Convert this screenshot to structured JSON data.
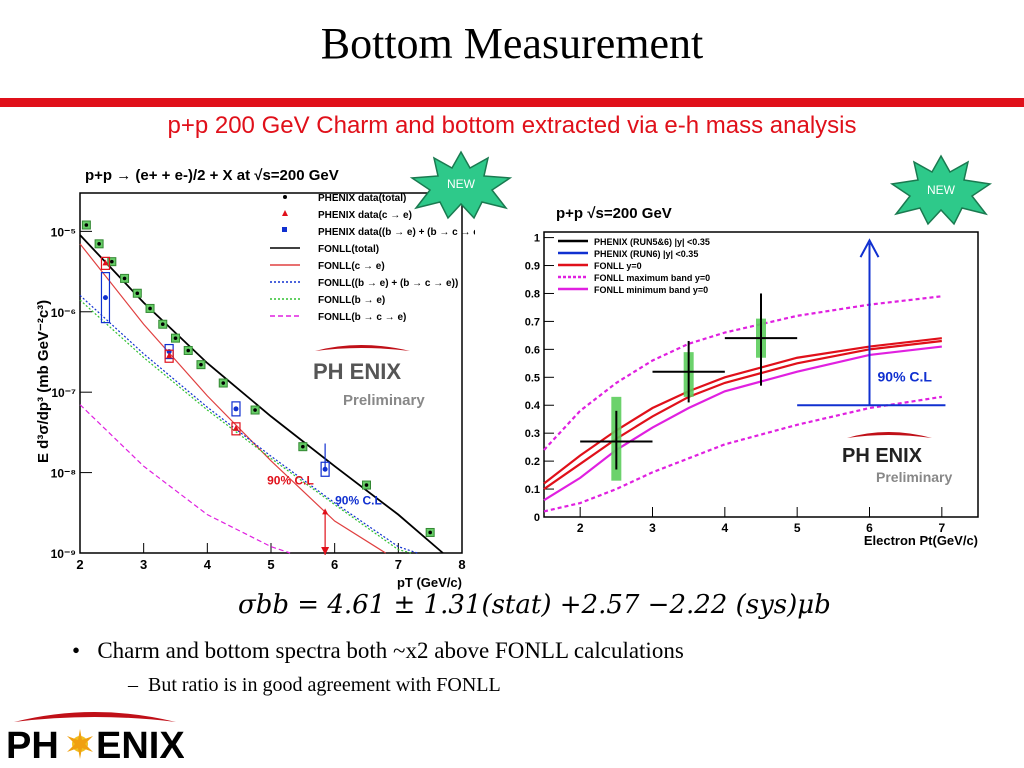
{
  "slide": {
    "title": "Bottom Measurement",
    "subtitle": "p+p 200 GeV   Charm and bottom extracted via e-h mass analysis",
    "bullet1": "Charm and bottom spectra both ~x2 above FONLL calculations",
    "bullet2": "But ratio is in good agreement with FONLL",
    "formula": "σbb = 4.61 ± 1.31(stat) +2.57 −2.22 (sys)μb",
    "new_badge": "NEW",
    "colors": {
      "accent_red": "#e0101a",
      "badge_green": "#2ec98a"
    }
  },
  "chart_data": [
    {
      "type": "scatter",
      "title": "p+p → (e+ + e-)/2 + X at √s=200 GeV",
      "xlabel": "pT (GeV/c)",
      "ylabel": "E d³σ/dp³ (mb GeV⁻²c³)",
      "xlim": [
        2,
        8
      ],
      "ylim": [
        1e-09,
        3e-05
      ],
      "yscale": "log",
      "x_ticks": [
        "2",
        "3",
        "4",
        "5",
        "6",
        "7",
        "8"
      ],
      "y_ticks": [
        "10⁻⁹",
        "10⁻⁸",
        "10⁻⁷",
        "10⁻⁶",
        "10⁻⁵"
      ],
      "legend_position": "top-right",
      "legend": [
        "PHENIX data(total)",
        "PHENIX data(c → e)",
        "PHENIX data((b → e) + (b → c → e))",
        "FONLL(total)",
        "FONLL(c → e)",
        "FONLL((b → e) + (b → c → e))",
        "FONLL(b → e)",
        "FONLL(b → c → e)"
      ],
      "series": [
        {
          "name": "PHENIX data(total)",
          "color": "#1a1a1a",
          "x": [
            2.1,
            2.3,
            2.5,
            2.7,
            2.9,
            3.1,
            3.3,
            3.5,
            3.7,
            3.9,
            4.25,
            4.75,
            5.5,
            6.5,
            7.5
          ],
          "y": [
            1.2e-05,
            7e-06,
            4.2e-06,
            2.6e-06,
            1.7e-06,
            1.1e-06,
            7e-07,
            4.7e-07,
            3.3e-07,
            2.2e-07,
            1.3e-07,
            6e-08,
            2.1e-08,
            7e-09,
            1.8e-09
          ]
        },
        {
          "name": "PHENIX data(c → e)",
          "color": "#e0101a",
          "x": [
            2.4,
            3.4,
            4.45,
            5.85
          ],
          "y": [
            4e-06,
            2.8e-07,
            3.5e-08,
            3.2e-09
          ]
        },
        {
          "name": "PHENIX data((b → e) + (b → c → e))",
          "color": "#1030d0",
          "x": [
            2.4,
            3.4,
            4.45,
            5.85
          ],
          "y": [
            1.5e-06,
            3.2e-07,
            6.2e-08,
            1.1e-08
          ]
        },
        {
          "name": "FONLL(total)",
          "color": "#000000",
          "x": [
            2,
            3,
            4,
            5,
            6,
            7,
            7.7
          ],
          "y": [
            9e-06,
            1.3e-06,
            2.3e-07,
            5e-08,
            1.2e-08,
            3e-09,
            1e-09
          ]
        },
        {
          "name": "FONLL(c → e)",
          "color": "#e04040",
          "x": [
            2,
            3,
            4,
            5,
            6,
            6.8
          ],
          "y": [
            7e-06,
            7e-07,
            9e-08,
            1.4e-08,
            2.5e-09,
            1e-09
          ]
        },
        {
          "name": "FONLL((b → e) + (b → c → e))",
          "color": "#1030d0",
          "x": [
            2,
            3,
            4,
            5,
            6,
            7,
            7.3
          ],
          "y": [
            1.6e-06,
            3e-07,
            6.5e-08,
            1.6e-08,
            4.2e-09,
            1.2e-09,
            1e-09
          ]
        },
        {
          "name": "FONLL(b → e)",
          "color": "#30c030",
          "x": [
            2,
            3,
            4,
            5,
            6,
            7,
            7.2
          ],
          "y": [
            1.4e-06,
            2.7e-07,
            6e-08,
            1.5e-08,
            4e-09,
            1.1e-09,
            1e-09
          ]
        },
        {
          "name": "FONLL(b → c → e)",
          "color": "#e020e0",
          "x": [
            2,
            3,
            4,
            5,
            5.3
          ],
          "y": [
            7e-08,
            1.2e-08,
            3e-09,
            1.2e-09,
            1e-09
          ]
        }
      ],
      "annotations": [
        "90% C.L",
        "90% C.L"
      ],
      "logo_text": "PH ENIX",
      "preliminary": "Preliminary"
    },
    {
      "type": "line",
      "title": "p+p    √s=200 GeV",
      "xlabel": "Electron Pt(GeV/c)",
      "xlim": [
        1.5,
        7.5
      ],
      "ylim": [
        0,
        1.02
      ],
      "x_ticks": [
        "2",
        "3",
        "4",
        "5",
        "6",
        "7"
      ],
      "y_ticks": [
        "0",
        "0.1",
        "0.2",
        "0.3",
        "0.4",
        "0.5",
        "0.6",
        "0.7",
        "0.8",
        "0.9",
        "1"
      ],
      "legend_position": "top-left",
      "legend": [
        "PHENIX (RUN5&6) |y| <0.35",
        "PHENIX (RUN6) |y| <0.35",
        "FONLL y=0",
        "FONLL maximum band y=0",
        "FONLL minimum band y=0"
      ],
      "points": {
        "x": [
          2.5,
          3.5,
          4.5
        ],
        "y": [
          0.27,
          0.52,
          0.64
        ],
        "x_err": [
          0.5,
          0.5,
          0.5
        ],
        "y_err_low": [
          0.1,
          0.11,
          0.17
        ],
        "y_err_high": [
          0.11,
          0.11,
          0.16
        ],
        "sys_low": [
          0.13,
          0.43,
          0.57
        ],
        "sys_high": [
          0.43,
          0.59,
          0.71
        ]
      },
      "series": [
        {
          "name": "FONLL y=0 (upper)",
          "color": "#e0101a",
          "x": [
            1.5,
            2,
            2.5,
            3,
            3.5,
            4,
            5,
            6,
            7
          ],
          "y": [
            0.12,
            0.22,
            0.31,
            0.39,
            0.45,
            0.5,
            0.57,
            0.61,
            0.64
          ]
        },
        {
          "name": "FONLL y=0 (lower)",
          "color": "#e0101a",
          "x": [
            1.5,
            2,
            2.5,
            3,
            3.5,
            4,
            5,
            6,
            7
          ],
          "y": [
            0.1,
            0.19,
            0.28,
            0.36,
            0.43,
            0.48,
            0.55,
            0.6,
            0.63
          ]
        },
        {
          "name": "FONLL maximum band y=0",
          "color": "#e020e0",
          "dashed": true,
          "x": [
            1.5,
            2,
            2.5,
            3,
            3.5,
            4,
            5,
            6,
            7
          ],
          "y": [
            0.24,
            0.38,
            0.48,
            0.56,
            0.62,
            0.66,
            0.72,
            0.76,
            0.79
          ]
        },
        {
          "name": "FONLL minimum band y=0",
          "color": "#e020e0",
          "dashed": false,
          "x": [
            1.5,
            2,
            2.5,
            3,
            3.5,
            4,
            5,
            6,
            7
          ],
          "y": [
            0.06,
            0.14,
            0.24,
            0.32,
            0.39,
            0.45,
            0.52,
            0.58,
            0.61
          ]
        },
        {
          "name": "FONLL minimum band lower",
          "color": "#e020e0",
          "dashed": true,
          "x": [
            1.5,
            2,
            2.5,
            3,
            3.5,
            4,
            5,
            6,
            7
          ],
          "y": [
            0.02,
            0.05,
            0.1,
            0.16,
            0.21,
            0.26,
            0.33,
            0.39,
            0.43
          ]
        }
      ],
      "cl_value": 0.4,
      "cl_label": "90% C.L",
      "logo_text": "PH ENIX",
      "preliminary": "Preliminary"
    }
  ]
}
